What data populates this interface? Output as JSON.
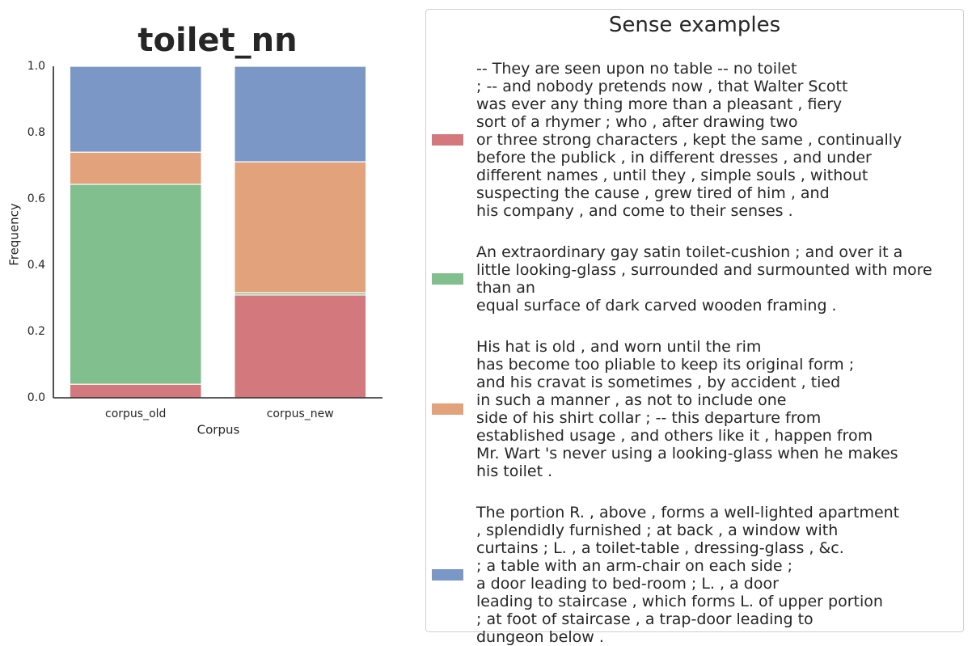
{
  "chart_data": {
    "type": "stacked_bar",
    "title": "toilet_nn",
    "xlabel": "Corpus",
    "ylabel": "Frequency",
    "categories": [
      "corpus_old",
      "corpus_new"
    ],
    "ylim": [
      0,
      1
    ],
    "yticks": [
      {
        "value": 0,
        "label": "0.0"
      },
      0.2,
      0.4,
      0.6,
      0.8,
      {
        "value": 1,
        "label": "1.0"
      }
    ],
    "grid": false,
    "legend_title": "Sense examples",
    "legend_position": "right",
    "series": [
      {
        "name": "-- They are seen upon no table -- no toilet\n; -- and nobody pretends now , that Walter Scott\nwas ever any thing more than a pleasant , fiery\nsort of a rhymer ; who , after drawing two\nor three strong characters , kept the same , continually\nbefore the publick , in different dresses , and under\ndifferent names , until they , simple souls , without\nsuspecting the cause , grew tired of him , and\nhis company , and come to their senses .",
        "color": "#d3787c",
        "values": [
          0.041,
          0.31
        ]
      },
      {
        "name": "An extraordinary gay satin toilet-cushion ; and over it a\nlittle looking-glass , surrounded and surmounted with more than an\nequal surface of dark carved wooden framing .",
        "color": "#82bf8e",
        "values": [
          0.603,
          0.007
        ]
      },
      {
        "name": "His hat is old , and worn until the rim\nhas become too pliable to keep its original form ;\nand his cravat is sometimes , by accident , tied\nin such a manner , as not to include one\nside of his shirt collar ; -- this departure from\nestablished usage , and others like it , happen from\nMr. Wart 's never using a looking-glass when he makes\nhis toilet .",
        "color": "#e2a37c",
        "values": [
          0.097,
          0.395
        ]
      },
      {
        "name": "The portion R. , above , forms a well-lighted apartment\n, splendidly furnished ; at back , a window with\ncurtains ; L. , a toilet-table , dressing-glass , &c.\n; a table with an arm-chair on each side ;\na door leading to bed-room ; L. , a door\nleading to staircase , which forms L. of upper portion\n; at foot of staircase , a trap-door leading to\ndungeon below .",
        "color": "#7b97c6",
        "values": [
          0.259,
          0.288
        ]
      }
    ]
  }
}
